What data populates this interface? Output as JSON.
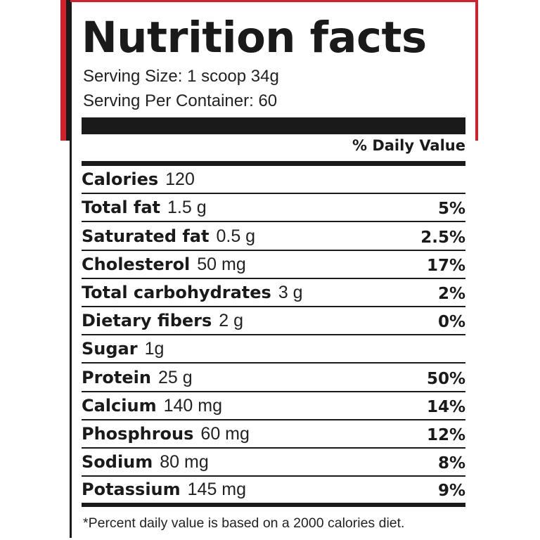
{
  "label": {
    "title": "Nutrition facts",
    "serving_size": "Serving Size: 1 scoop 34g",
    "servings_per_container": "Serving Per Container: 60",
    "daily_value_header": "% Daily Value",
    "footnote": "*Percent daily value is based on a 2000 calories diet.",
    "colors": {
      "ink": "#1a1a1a",
      "accent_red": "#d4202a"
    }
  },
  "nutrients": [
    {
      "name": "Calories",
      "amount": "120",
      "dv": ""
    },
    {
      "name": "Total fat",
      "amount": "1.5 g",
      "dv": "5%"
    },
    {
      "name": "Saturated fat",
      "amount": "0.5 g",
      "dv": "2.5%"
    },
    {
      "name": "Cholesterol",
      "amount": "50 mg",
      "dv": "17%"
    },
    {
      "name": "Total carbohydrates",
      "amount": "3 g",
      "dv": "2%"
    },
    {
      "name": "Dietary fibers",
      "amount": "2 g",
      "dv": "0%"
    },
    {
      "name": "Sugar",
      "amount": "1g",
      "dv": ""
    },
    {
      "name": "Protein",
      "amount": "25 g",
      "dv": "50%"
    },
    {
      "name": "Calcium",
      "amount": "140 mg",
      "dv": "14%"
    },
    {
      "name": "Phosphrous",
      "amount": "60 mg",
      "dv": "12%"
    },
    {
      "name": "Sodium",
      "amount": "80 mg",
      "dv": "8%"
    },
    {
      "name": "Potassium",
      "amount": "145 mg",
      "dv": "9%"
    }
  ]
}
